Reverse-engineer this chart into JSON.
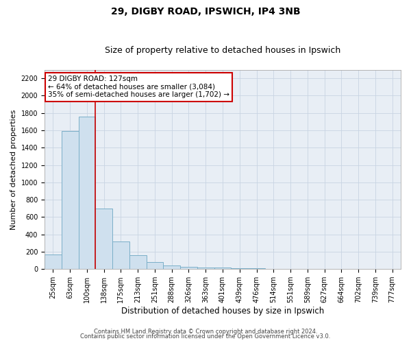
{
  "title1": "29, DIGBY ROAD, IPSWICH, IP4 3NB",
  "title2": "Size of property relative to detached houses in Ipswich",
  "xlabel": "Distribution of detached houses by size in Ipswich",
  "ylabel": "Number of detached properties",
  "categories": [
    "25sqm",
    "63sqm",
    "100sqm",
    "138sqm",
    "175sqm",
    "213sqm",
    "251sqm",
    "288sqm",
    "326sqm",
    "363sqm",
    "401sqm",
    "439sqm",
    "476sqm",
    "514sqm",
    "551sqm",
    "589sqm",
    "627sqm",
    "664sqm",
    "702sqm",
    "739sqm",
    "777sqm"
  ],
  "values": [
    170,
    1590,
    1760,
    700,
    315,
    160,
    80,
    45,
    25,
    18,
    14,
    10,
    8,
    0,
    0,
    0,
    0,
    0,
    0,
    0,
    0
  ],
  "bar_color": "#cfe0ee",
  "bar_edge_color": "#7aafc8",
  "vline_x": 2.5,
  "vline_color": "#cc0000",
  "annotation_text": "29 DIGBY ROAD: 127sqm\n← 64% of detached houses are smaller (3,084)\n35% of semi-detached houses are larger (1,702) →",
  "annotation_box_facecolor": "#ffffff",
  "annotation_box_edge": "#cc0000",
  "ylim": [
    0,
    2300
  ],
  "yticks": [
    0,
    200,
    400,
    600,
    800,
    1000,
    1200,
    1400,
    1600,
    1800,
    2000,
    2200
  ],
  "grid_color": "#c8d4e3",
  "bg_color": "#e8eef5",
  "footer1": "Contains HM Land Registry data © Crown copyright and database right 2024.",
  "footer2": "Contains public sector information licensed under the Open Government Licence v3.0.",
  "title_fontsize": 10,
  "subtitle_fontsize": 9,
  "xlabel_fontsize": 8.5,
  "ylabel_fontsize": 8,
  "tick_fontsize": 7,
  "footer_fontsize": 6,
  "annot_fontsize": 7.5
}
